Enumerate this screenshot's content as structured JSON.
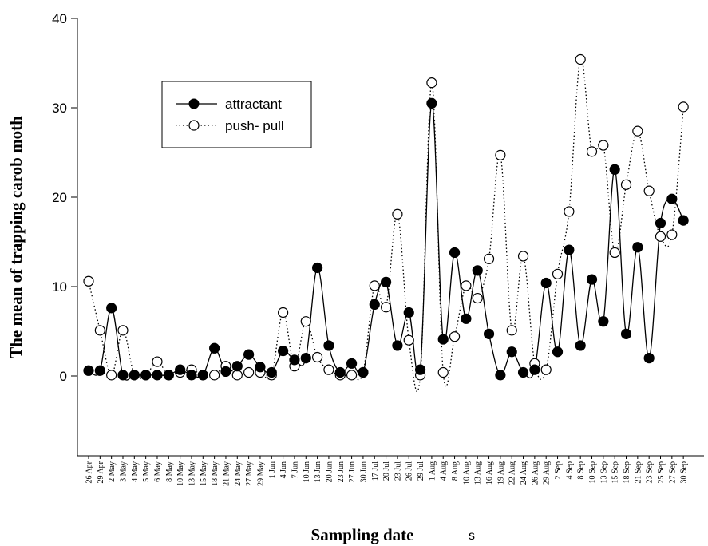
{
  "chart_data": {
    "type": "line",
    "title": "",
    "xlabel": "Sampling date",
    "ylabel": "The mean of trapping carob moth",
    "stray_label": "s",
    "ylim": [
      -10,
      40
    ],
    "yticks": [
      0,
      10,
      20,
      30,
      40
    ],
    "grid": false,
    "legend_position": "upper-left",
    "categories": [
      "26 Apr",
      "29 Apr",
      "2 May",
      "3 May",
      "4 May",
      "5 May",
      "6 May",
      "8 May",
      "10 May",
      "13 May",
      "15 May",
      "18 May",
      "21 May",
      "24 May",
      "27 May",
      "29 May",
      "1 Jun",
      "4 Jun",
      "7 Jun",
      "10 Jun",
      "13 Jun",
      "20 Jun",
      "23 Jun",
      "27 Jun",
      "30 Jun",
      "17 Jul",
      "20 Jul",
      "23 Jul",
      "26 Jul",
      "29 Jul",
      "1 Aug",
      "4 Aug",
      "8 Aug",
      "10 Aug",
      "13 Aug",
      "16 Aug",
      "19 Aug",
      "22 Aug",
      "24 Aug",
      "26 Aug",
      "29 Aug",
      "2 Sep",
      "4 Sep",
      "8 Sep",
      "10 Sep",
      "13 Sep",
      "15 Sep",
      "18 Sep",
      "21 Sep",
      "23 Sep",
      "25 Sep",
      "27 Sep",
      "30 Sep"
    ],
    "series": [
      {
        "name": "attractant",
        "marker": "filled-circle",
        "line": "solid",
        "color": "#000000",
        "values": [
          0.6,
          0.6,
          7.6,
          0.1,
          0.1,
          0.1,
          0.1,
          0.1,
          0.7,
          0.1,
          0.1,
          3.1,
          0.5,
          1.1,
          2.4,
          1.0,
          0.4,
          2.8,
          1.8,
          2.0,
          12.1,
          3.4,
          0.4,
          1.4,
          0.4,
          8.0,
          10.5,
          3.4,
          7.1,
          0.7,
          30.5,
          4.1,
          13.8,
          6.4,
          11.8,
          4.7,
          0.1,
          2.7,
          0.4,
          0.7,
          10.4,
          2.7,
          14.1,
          3.4,
          10.8,
          6.1,
          23.1,
          4.7,
          14.4,
          2.0,
          17.1,
          19.8,
          17.4
        ]
      },
      {
        "name": "push- pull",
        "marker": "open-circle",
        "line": "dotted",
        "color": "#000000",
        "values": [
          10.6,
          5.1,
          0.1,
          5.1,
          0.1,
          0.1,
          1.6,
          0.1,
          0.4,
          0.7,
          0.1,
          0.1,
          1.1,
          0.1,
          0.4,
          0.4,
          0.1,
          7.1,
          1.1,
          6.1,
          2.1,
          0.7,
          0.1,
          0.1,
          0.4,
          10.1,
          7.7,
          18.1,
          4.0,
          0.1,
          32.8,
          0.4,
          4.4,
          10.1,
          8.7,
          13.1,
          24.7,
          5.1,
          13.4,
          1.4,
          0.7,
          11.4,
          18.4,
          35.4,
          25.1,
          25.8,
          13.8,
          21.4,
          27.4,
          20.7,
          15.6,
          15.8,
          30.1
        ]
      }
    ]
  }
}
